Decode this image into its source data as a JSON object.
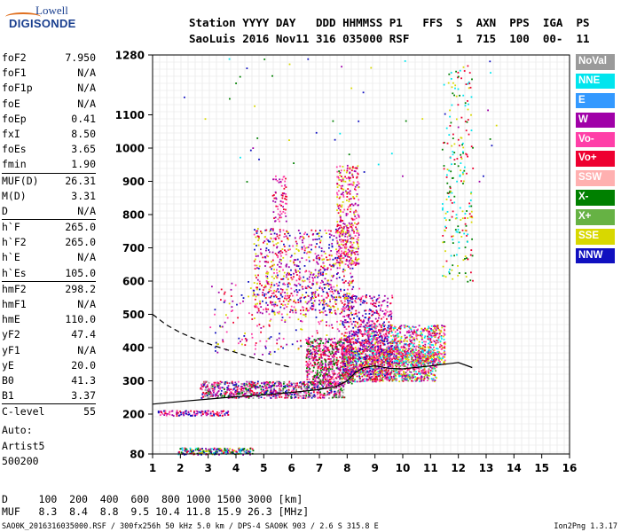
{
  "logo": {
    "line1": "Lowell",
    "line2": "DIGISONDE"
  },
  "header": {
    "line1": "Station YYYY DAY   DDD HHMMSS P1   FFS  S  AXN  PPS  IGA  PS",
    "line2": "SaoLuis 2016 Nov11 316 035000 RSF       1  715  100  00-  11"
  },
  "params": [
    [
      [
        "foF2",
        "7.950"
      ],
      [
        "foF1",
        "N/A"
      ],
      [
        "foF1p",
        "N/A"
      ],
      [
        "foE",
        "N/A"
      ],
      [
        "foEp",
        "0.41"
      ],
      [
        "fxI",
        "8.50"
      ],
      [
        "foEs",
        "3.65"
      ],
      [
        "fmin",
        "1.90"
      ]
    ],
    [
      [
        "MUF(D)",
        "26.31"
      ],
      [
        "M(D)",
        "3.31"
      ],
      [
        "D",
        "N/A"
      ]
    ],
    [
      [
        "h`F",
        "265.0"
      ],
      [
        "h`F2",
        "265.0"
      ],
      [
        "h`E",
        "N/A"
      ],
      [
        "h`Es",
        "105.0"
      ]
    ],
    [
      [
        "hmF2",
        "298.2"
      ],
      [
        "hmF1",
        "N/A"
      ],
      [
        "hmE",
        "110.0"
      ],
      [
        "yF2",
        "47.4"
      ],
      [
        "yF1",
        "N/A"
      ],
      [
        "yE",
        "20.0"
      ],
      [
        "B0",
        "41.3"
      ],
      [
        "B1",
        "3.37"
      ]
    ],
    [
      [
        "C-level",
        "55"
      ]
    ]
  ],
  "auto": {
    "line1": "Auto:",
    "line2": "Artist5",
    "line3": "500200"
  },
  "legend": [
    {
      "label": "NoVal",
      "color": "#9a9a9a"
    },
    {
      "label": "NNE",
      "color": "#00e5ee"
    },
    {
      "label": "E",
      "color": "#3399ff"
    },
    {
      "label": "W",
      "color": "#a000a8"
    },
    {
      "label": "Vo-",
      "color": "#ff3fa8"
    },
    {
      "label": "Vo+",
      "color": "#ee0030"
    },
    {
      "label": "SSW",
      "color": "#ffb0b0"
    },
    {
      "label": "X-",
      "color": "#008000"
    },
    {
      "label": "X+",
      "color": "#66b244"
    },
    {
      "label": "SSE",
      "color": "#d8d800"
    },
    {
      "label": "NNW",
      "color": "#1010c0"
    }
  ],
  "dmuf": {
    "d_line": "D     100  200  400  600  800 1000 1500 3000 [km]",
    "muf_line": "MUF   8.3  8.4  8.8  9.5 10.4 11.8 15.9 26.3 [MHz]"
  },
  "footer": {
    "left": "SAO0K_2016316035000.RSF / 300fx256h 50 kHz 5.0 km / DPS-4 SAO0K 903 / 2.6 S 315.8 E",
    "right": "Ion2Png 1.3.17"
  },
  "chart_data": {
    "type": "scatter",
    "xlim": [
      1,
      16
    ],
    "ylim": [
      80,
      1280
    ],
    "x_ticks": [
      1,
      2,
      3,
      4,
      5,
      6,
      7,
      8,
      9,
      10,
      11,
      12,
      13,
      14,
      15,
      16
    ],
    "y_ticks": [
      80,
      200,
      300,
      400,
      500,
      600,
      700,
      800,
      900,
      1000,
      1100,
      1280
    ],
    "grid": true,
    "legend_position": "right",
    "clusters": [
      {
        "name": "Es trace",
        "x": [
          1.9,
          4.6
        ],
        "y": [
          80,
          100
        ],
        "density": 0.95,
        "colors": [
          "W",
          "NNW",
          "X-",
          "Vo+",
          "SSE",
          "NNE"
        ]
      },
      {
        "name": "Es multiple",
        "x": [
          1.1,
          3.7
        ],
        "y": [
          197,
          212
        ],
        "density": 0.8,
        "colors": [
          "Vo+",
          "W",
          "Vo-",
          "NNW"
        ]
      },
      {
        "name": "F trace",
        "x": [
          2.7,
          7.9
        ],
        "y": [
          250,
          300
        ],
        "density": 0.8,
        "colors": [
          "Vo+",
          "Vo-",
          "W",
          "NNW",
          "X-",
          "NoVal"
        ]
      },
      {
        "name": "F rising",
        "x": [
          6.5,
          8.2
        ],
        "y": [
          290,
          430
        ],
        "density": 0.7,
        "colors": [
          "Vo+",
          "W",
          "Vo-",
          "X-"
        ]
      },
      {
        "name": "F broad",
        "x": [
          7.8,
          11.2
        ],
        "y": [
          300,
          400
        ],
        "density": 0.75,
        "colors": [
          "Vo+",
          "Vo-",
          "SSE",
          "W",
          "NNE",
          "X+"
        ]
      },
      {
        "name": "F upper",
        "x": [
          8.6,
          11.5
        ],
        "y": [
          350,
          470
        ],
        "density": 0.6,
        "colors": [
          "SSE",
          "W",
          "Vo-",
          "Vo+",
          "NNE"
        ]
      },
      {
        "name": "F spread",
        "x": [
          7.8,
          9.6
        ],
        "y": [
          300,
          560
        ],
        "density": 0.35,
        "colors": [
          "Vo+",
          "W",
          "Vo-",
          "NNW"
        ]
      },
      {
        "name": "2F trace",
        "x": [
          4.6,
          8.2
        ],
        "y": [
          500,
          760
        ],
        "density": 0.22,
        "colors": [
          "W",
          "Vo-",
          "Vo+",
          "NNW",
          "SSE"
        ]
      },
      {
        "name": "2F upper",
        "x": [
          7.6,
          8.4
        ],
        "y": [
          650,
          950
        ],
        "density": 0.35,
        "colors": [
          "Vo+",
          "W",
          "Vo-",
          "SSE"
        ]
      },
      {
        "name": "3F faint",
        "x": [
          5.3,
          5.8
        ],
        "y": [
          780,
          920
        ],
        "density": 0.25,
        "colors": [
          "Vo+",
          "Vo-",
          "W"
        ]
      },
      {
        "name": "spread background",
        "x": [
          3.0,
          8.5
        ],
        "y": [
          380,
          600
        ],
        "density": 0.05,
        "colors": [
          "Vo+",
          "W",
          "Vo-",
          "SSE",
          "NNW"
        ]
      },
      {
        "name": "vertical stripes",
        "x": [
          11.4,
          12.5
        ],
        "y": [
          600,
          1250
        ],
        "density": 0.08,
        "colors": [
          "NNE",
          "X-",
          "SSE",
          "Vo+"
        ]
      },
      {
        "name": "top scatter",
        "x": [
          2.0,
          13.5
        ],
        "y": [
          900,
          1280
        ],
        "density": 0.003,
        "colors": [
          "SSE",
          "NNE",
          "X-",
          "W",
          "NNW"
        ]
      }
    ],
    "curves": [
      {
        "name": "profile-solid",
        "style": "solid",
        "x": [
          1.0,
          2.0,
          3.0,
          4.0,
          5.0,
          6.0,
          7.0,
          7.6,
          8.0,
          8.3,
          8.6,
          9.0,
          9.5,
          10.0,
          11.0,
          12.0,
          12.5
        ],
        "y": [
          230,
          238,
          245,
          252,
          258,
          265,
          274,
          283,
          300,
          325,
          340,
          345,
          338,
          336,
          345,
          355,
          340
        ]
      },
      {
        "name": "profile-dashed",
        "style": "dashed",
        "x": [
          1.0,
          1.5,
          2.0,
          2.5,
          3.0,
          3.5,
          4.0,
          4.5,
          5.0,
          5.5,
          6.0
        ],
        "y": [
          500,
          468,
          445,
          427,
          412,
          398,
          385,
          372,
          360,
          350,
          340
        ]
      }
    ]
  }
}
